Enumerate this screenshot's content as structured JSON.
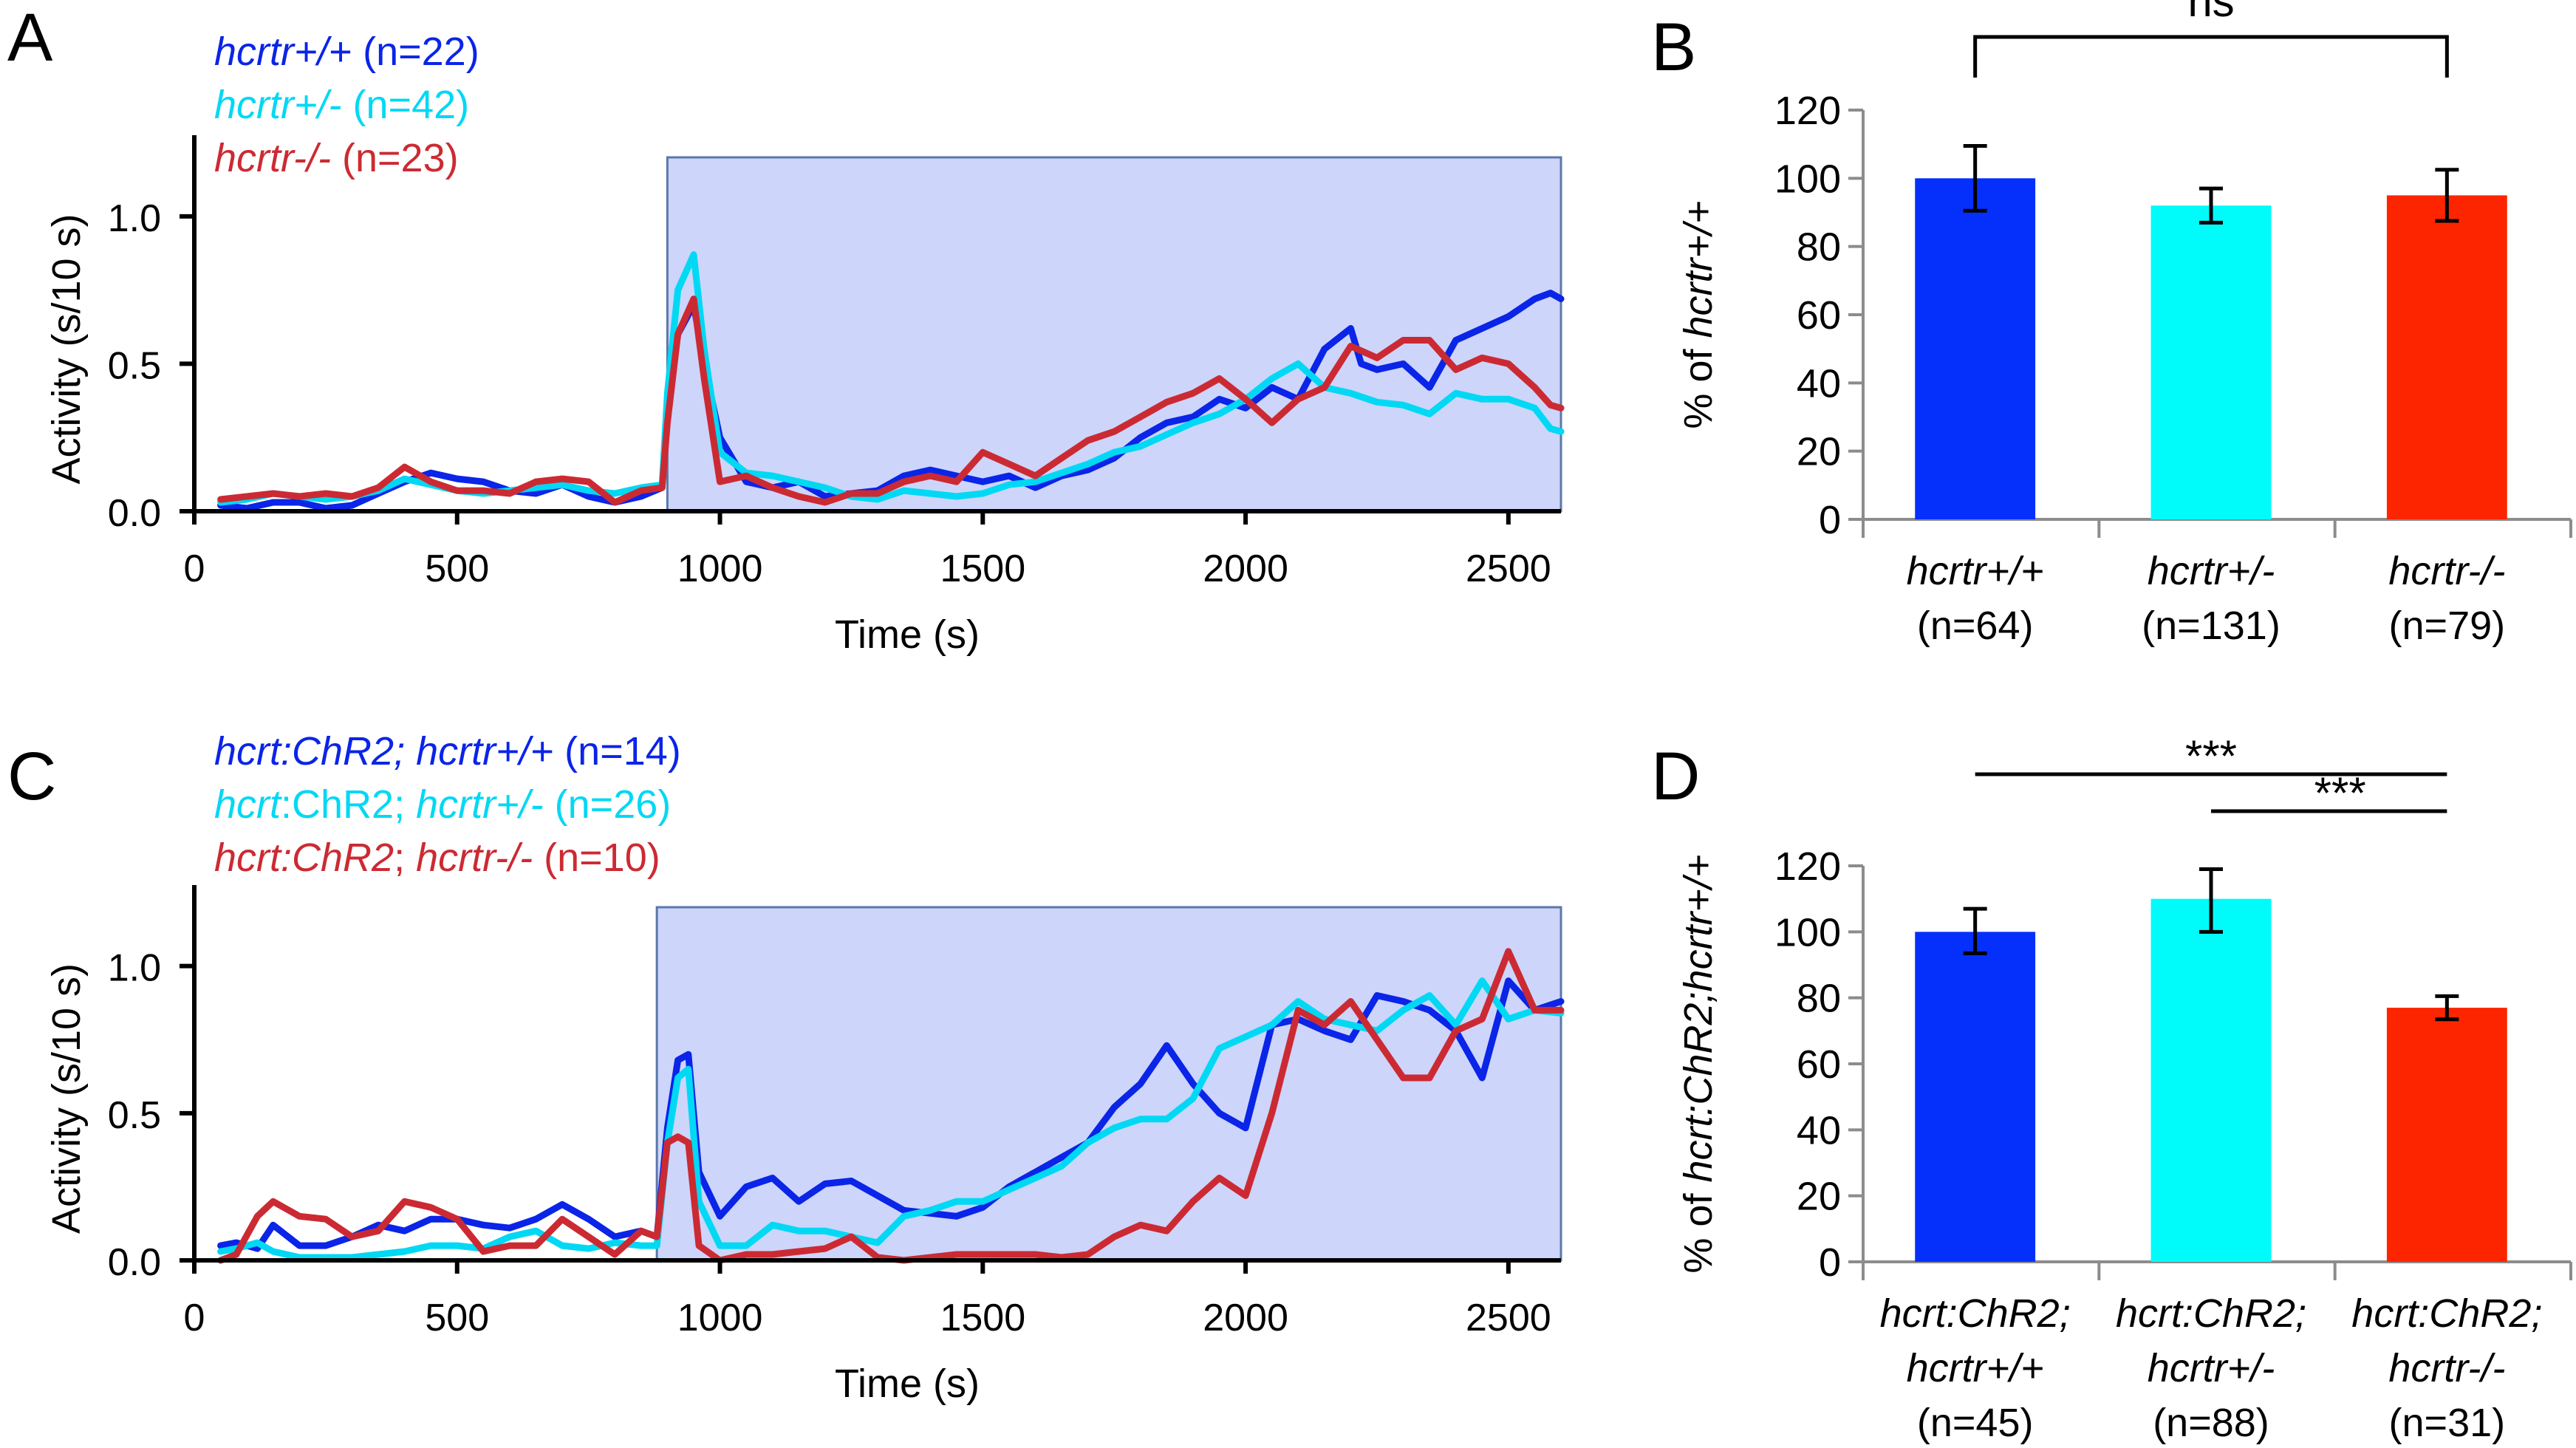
{
  "chart_data": [
    {
      "panel": "A",
      "type": "line",
      "xlabel": "Time (s)",
      "ylabel": "Activity (s/10 s)",
      "xlim": [
        0,
        2600
      ],
      "ylim": [
        0,
        1.2
      ],
      "xticks": [
        0,
        500,
        1000,
        1500,
        2000,
        2500
      ],
      "yticks": [
        0.0,
        0.5,
        1.0
      ],
      "ytick_labels": [
        "0.0",
        "0.5",
        "1.0"
      ],
      "shaded_region": {
        "x_start": 900,
        "x_end": 2600,
        "y_top": 1.2,
        "color": "#cdd5fb"
      },
      "legend_position": "top-left",
      "series": [
        {
          "name": "hcrtr+/+",
          "legend_italic": "hcrtr+/+",
          "legend_rest": " (n=22)",
          "color": "#0a24e8",
          "x": [
            50,
            100,
            150,
            200,
            250,
            300,
            350,
            400,
            450,
            500,
            550,
            600,
            650,
            700,
            750,
            800,
            850,
            890,
            900,
            920,
            950,
            970,
            1000,
            1050,
            1100,
            1150,
            1200,
            1250,
            1300,
            1350,
            1400,
            1450,
            1500,
            1550,
            1600,
            1650,
            1700,
            1750,
            1800,
            1850,
            1900,
            1950,
            2000,
            2050,
            2100,
            2150,
            2200,
            2220,
            2250,
            2300,
            2350,
            2400,
            2450,
            2500,
            2550,
            2580,
            2600
          ],
          "y": [
            0.02,
            0.01,
            0.03,
            0.03,
            0.01,
            0.02,
            0.06,
            0.1,
            0.13,
            0.11,
            0.1,
            0.07,
            0.06,
            0.09,
            0.05,
            0.03,
            0.05,
            0.08,
            0.35,
            0.6,
            0.7,
            0.5,
            0.25,
            0.1,
            0.08,
            0.1,
            0.05,
            0.06,
            0.07,
            0.12,
            0.14,
            0.12,
            0.1,
            0.12,
            0.08,
            0.12,
            0.14,
            0.18,
            0.25,
            0.3,
            0.32,
            0.38,
            0.35,
            0.42,
            0.38,
            0.55,
            0.62,
            0.5,
            0.48,
            0.5,
            0.42,
            0.58,
            0.62,
            0.66,
            0.72,
            0.74,
            0.72
          ]
        },
        {
          "name": "hcrtr+/-",
          "legend_italic": "hcrtr+/-",
          "legend_rest": " (n=42)",
          "color": "#00d8f4",
          "x": [
            50,
            100,
            150,
            200,
            250,
            300,
            350,
            400,
            450,
            500,
            550,
            600,
            650,
            700,
            750,
            800,
            850,
            890,
            900,
            920,
            950,
            970,
            1000,
            1050,
            1100,
            1150,
            1200,
            1250,
            1300,
            1350,
            1400,
            1450,
            1500,
            1550,
            1600,
            1650,
            1700,
            1750,
            1800,
            1850,
            1900,
            1950,
            2000,
            2050,
            2100,
            2150,
            2200,
            2250,
            2300,
            2350,
            2400,
            2450,
            2500,
            2550,
            2580,
            2600
          ],
          "y": [
            0.03,
            0.04,
            0.06,
            0.05,
            0.04,
            0.05,
            0.07,
            0.11,
            0.09,
            0.07,
            0.06,
            0.07,
            0.08,
            0.09,
            0.07,
            0.06,
            0.08,
            0.09,
            0.4,
            0.75,
            0.87,
            0.55,
            0.2,
            0.13,
            0.12,
            0.1,
            0.08,
            0.05,
            0.04,
            0.07,
            0.06,
            0.05,
            0.06,
            0.09,
            0.1,
            0.13,
            0.16,
            0.2,
            0.22,
            0.26,
            0.3,
            0.33,
            0.38,
            0.45,
            0.5,
            0.42,
            0.4,
            0.37,
            0.36,
            0.33,
            0.4,
            0.38,
            0.38,
            0.35,
            0.28,
            0.27
          ]
        },
        {
          "name": "hcrtr-/-",
          "legend_italic": "hcrtr-/-",
          "legend_rest": " (n=23)",
          "color": "#cc2a33",
          "x": [
            50,
            100,
            150,
            200,
            250,
            300,
            350,
            400,
            450,
            500,
            550,
            600,
            650,
            700,
            750,
            800,
            850,
            890,
            900,
            920,
            950,
            970,
            1000,
            1050,
            1100,
            1150,
            1200,
            1250,
            1300,
            1350,
            1400,
            1450,
            1500,
            1550,
            1600,
            1650,
            1700,
            1750,
            1800,
            1850,
            1900,
            1950,
            2000,
            2050,
            2100,
            2150,
            2200,
            2250,
            2300,
            2350,
            2400,
            2450,
            2500,
            2550,
            2580,
            2600
          ],
          "y": [
            0.04,
            0.05,
            0.06,
            0.05,
            0.06,
            0.05,
            0.08,
            0.15,
            0.1,
            0.07,
            0.07,
            0.06,
            0.1,
            0.11,
            0.1,
            0.03,
            0.07,
            0.08,
            0.3,
            0.6,
            0.72,
            0.45,
            0.1,
            0.12,
            0.08,
            0.05,
            0.03,
            0.06,
            0.06,
            0.1,
            0.12,
            0.1,
            0.2,
            0.16,
            0.12,
            0.18,
            0.24,
            0.27,
            0.32,
            0.37,
            0.4,
            0.45,
            0.38,
            0.3,
            0.38,
            0.42,
            0.56,
            0.52,
            0.58,
            0.58,
            0.48,
            0.52,
            0.5,
            0.42,
            0.36,
            0.35
          ]
        }
      ]
    },
    {
      "panel": "B",
      "type": "bar",
      "ylabel_prefix": "% of ",
      "ylabel_italic": "hcrtr+/+",
      "ylim": [
        0,
        120
      ],
      "yticks": [
        0,
        20,
        40,
        60,
        80,
        100,
        120
      ],
      "categories": [
        "hcrtr+/+",
        "hcrtr+/-",
        "hcrtr-/-"
      ],
      "category_n": [
        "(n=64)",
        "(n=131)",
        "(n=79)"
      ],
      "values": [
        100,
        92,
        95
      ],
      "error": [
        [
          90.5,
          109.5
        ],
        [
          87,
          97
        ],
        [
          87.5,
          102.5
        ]
      ],
      "colors": [
        "#0530fb",
        "#00fbfb",
        "#fc2500"
      ],
      "significance": [
        {
          "from": 0,
          "to": 2,
          "label": "ns",
          "style": "bracket"
        }
      ]
    },
    {
      "panel": "C",
      "type": "line",
      "xlabel": "Time (s)",
      "ylabel": "Activity (s/10 s)",
      "xlim": [
        0,
        2600
      ],
      "ylim": [
        0,
        1.2
      ],
      "xticks": [
        0,
        500,
        1000,
        1500,
        2000,
        2500
      ],
      "yticks": [
        0.0,
        0.5,
        1.0
      ],
      "ytick_labels": [
        "0.0",
        "0.5",
        "1.0"
      ],
      "shaded_region": {
        "x_start": 880,
        "x_end": 2600,
        "y_top": 1.2,
        "color": "#cdd5fb"
      },
      "legend_position": "top-left",
      "series": [
        {
          "name": "hcrt:ChR2; hcrtr+/+",
          "legend_parts": [
            {
              "t": "hcrt:ChR2; hcrtr+/+",
              "i": true
            },
            {
              "t": " (n=14)",
              "i": false
            }
          ],
          "color": "#0a24e8",
          "x": [
            50,
            80,
            120,
            150,
            200,
            250,
            300,
            350,
            400,
            450,
            500,
            550,
            600,
            650,
            700,
            750,
            800,
            850,
            880,
            900,
            920,
            940,
            960,
            1000,
            1050,
            1100,
            1150,
            1200,
            1250,
            1300,
            1350,
            1400,
            1450,
            1500,
            1550,
            1600,
            1650,
            1700,
            1750,
            1800,
            1850,
            1900,
            1950,
            2000,
            2050,
            2100,
            2150,
            2200,
            2250,
            2300,
            2350,
            2400,
            2450,
            2500,
            2550,
            2600
          ],
          "y": [
            0.05,
            0.06,
            0.04,
            0.12,
            0.05,
            0.05,
            0.08,
            0.12,
            0.1,
            0.14,
            0.14,
            0.12,
            0.11,
            0.14,
            0.19,
            0.14,
            0.08,
            0.1,
            0.08,
            0.45,
            0.68,
            0.7,
            0.3,
            0.15,
            0.25,
            0.28,
            0.2,
            0.26,
            0.27,
            0.22,
            0.17,
            0.16,
            0.15,
            0.18,
            0.25,
            0.3,
            0.35,
            0.4,
            0.52,
            0.6,
            0.73,
            0.6,
            0.5,
            0.45,
            0.8,
            0.82,
            0.78,
            0.75,
            0.9,
            0.88,
            0.85,
            0.78,
            0.62,
            0.95,
            0.85,
            0.88
          ]
        },
        {
          "name": "hcrt:ChR2; hcrtr+/-",
          "legend_parts": [
            {
              "t": "hcrt",
              "i": true
            },
            {
              "t": ":ChR2; ",
              "i": false
            },
            {
              "t": "hcrtr+/-",
              "i": true
            },
            {
              "t": " (n=26)",
              "i": false
            }
          ],
          "color": "#00d8f4",
          "x": [
            50,
            80,
            120,
            150,
            200,
            250,
            300,
            350,
            400,
            450,
            500,
            550,
            600,
            650,
            700,
            750,
            800,
            850,
            880,
            900,
            920,
            940,
            960,
            1000,
            1050,
            1100,
            1150,
            1200,
            1250,
            1300,
            1350,
            1400,
            1450,
            1500,
            1550,
            1600,
            1650,
            1700,
            1750,
            1800,
            1850,
            1900,
            1950,
            2000,
            2050,
            2100,
            2150,
            2200,
            2250,
            2300,
            2350,
            2400,
            2450,
            2500,
            2550,
            2600
          ],
          "y": [
            0.03,
            0.04,
            0.06,
            0.03,
            0.01,
            0.01,
            0.01,
            0.02,
            0.03,
            0.05,
            0.05,
            0.04,
            0.08,
            0.1,
            0.05,
            0.04,
            0.06,
            0.05,
            0.05,
            0.4,
            0.62,
            0.65,
            0.2,
            0.05,
            0.05,
            0.12,
            0.1,
            0.1,
            0.08,
            0.06,
            0.15,
            0.17,
            0.2,
            0.2,
            0.24,
            0.28,
            0.32,
            0.4,
            0.45,
            0.48,
            0.48,
            0.55,
            0.72,
            0.76,
            0.8,
            0.88,
            0.82,
            0.8,
            0.78,
            0.85,
            0.9,
            0.8,
            0.95,
            0.82,
            0.85,
            0.84
          ]
        },
        {
          "name": "hcrt:ChR2; hcrtr-/-",
          "legend_parts": [
            {
              "t": "hcrt:ChR2",
              "i": true
            },
            {
              "t": "; ",
              "i": false
            },
            {
              "t": "hcrtr-/-",
              "i": true
            },
            {
              "t": " (n=10)",
              "i": false
            }
          ],
          "color": "#cc2a33",
          "x": [
            50,
            80,
            120,
            150,
            200,
            250,
            300,
            350,
            400,
            450,
            500,
            550,
            600,
            650,
            700,
            750,
            800,
            850,
            880,
            900,
            920,
            940,
            960,
            1000,
            1050,
            1100,
            1150,
            1200,
            1250,
            1300,
            1350,
            1400,
            1450,
            1500,
            1550,
            1600,
            1650,
            1700,
            1750,
            1800,
            1850,
            1900,
            1950,
            2000,
            2050,
            2100,
            2150,
            2200,
            2250,
            2300,
            2350,
            2400,
            2450,
            2500,
            2550,
            2600
          ],
          "y": [
            0.0,
            0.02,
            0.15,
            0.2,
            0.15,
            0.14,
            0.08,
            0.1,
            0.2,
            0.18,
            0.14,
            0.03,
            0.05,
            0.05,
            0.14,
            0.08,
            0.02,
            0.1,
            0.08,
            0.4,
            0.42,
            0.4,
            0.05,
            0.0,
            0.02,
            0.02,
            0.03,
            0.04,
            0.08,
            0.01,
            0.0,
            0.01,
            0.02,
            0.02,
            0.02,
            0.02,
            0.01,
            0.02,
            0.08,
            0.12,
            0.1,
            0.2,
            0.28,
            0.22,
            0.5,
            0.85,
            0.8,
            0.88,
            0.75,
            0.62,
            0.62,
            0.78,
            0.82,
            1.05,
            0.85,
            0.85
          ]
        }
      ]
    },
    {
      "panel": "D",
      "type": "bar",
      "ylabel_prefix": "% of ",
      "ylabel_italic": "hcrt:ChR2;hcrtr+/+",
      "ylim": [
        0,
        120
      ],
      "yticks": [
        0,
        20,
        40,
        60,
        80,
        100,
        120
      ],
      "categories": [
        "hcrt:ChR2; hcrtr+/+",
        "hcrt:ChR2; hcrtr+/-",
        "hcrt:ChR2; hcrtr-/-"
      ],
      "category_line1": [
        "hcrt:ChR2;",
        "hcrt:ChR2;",
        "hcrt:ChR2;"
      ],
      "category_line2": [
        "hcrtr+/+",
        "hcrtr+/-",
        "hcrtr-/-"
      ],
      "category_n": [
        "(n=45)",
        "(n=88)",
        "(n=31)"
      ],
      "values": [
        100,
        110,
        77
      ],
      "error": [
        [
          93.5,
          107
        ],
        [
          100,
          119
        ],
        [
          73.5,
          80.5
        ]
      ],
      "colors": [
        "#0530fb",
        "#00fbfb",
        "#fc2500"
      ],
      "significance": [
        {
          "from": 0,
          "to": 2,
          "label": "***",
          "style": "line"
        },
        {
          "from": 1,
          "to": 2,
          "label": "***",
          "style": "line"
        }
      ]
    }
  ],
  "panel_letters": {
    "a": "A",
    "b": "B",
    "c": "C",
    "d": "D"
  }
}
